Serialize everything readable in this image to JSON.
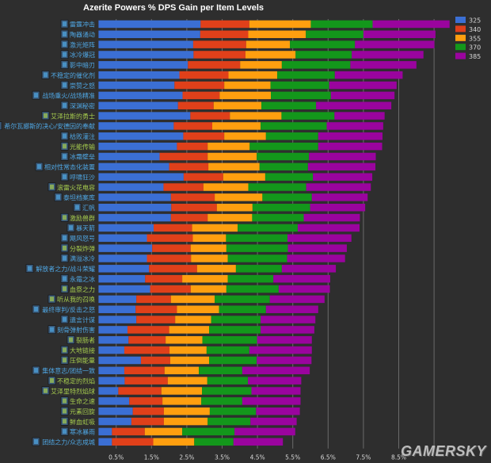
{
  "chart_data": {
    "type": "bar",
    "orientation": "horizontal",
    "stacked": true,
    "title": "Azerite Powers % DPS Gain per Item Levels",
    "xlabel": "",
    "ylabel": "",
    "xlim": [
      0,
      10.2
    ],
    "x_ticks": [
      "0.5%",
      "1.5%",
      "2.5%",
      "3.5%",
      "4.5%",
      "5.5%",
      "6.5%",
      "7.5%",
      "8.5%"
    ],
    "x_tick_values": [
      0.5,
      1.5,
      2.5,
      3.5,
      4.5,
      5.5,
      6.5,
      7.5,
      8.5
    ],
    "gridlines_at": [
      0.5,
      1.5,
      2.5,
      3.5,
      4.5,
      5.5,
      6.5,
      7.5,
      8.5,
      9.5
    ],
    "grid": true,
    "legend_position": "top-right",
    "value_meaning": "cumulative % DPS gain at each item level (bar segments drawn from previous level to this level)",
    "series": [
      {
        "name": "325",
        "color": "#3b6fd4"
      },
      {
        "name": "340",
        "color": "#e0401a"
      },
      {
        "name": "355",
        "color": "#ff9f0f"
      },
      {
        "name": "370",
        "color": "#13971b"
      },
      {
        "name": "385",
        "color": "#9a049e"
      }
    ],
    "label_colors": {
      "blue": "#4fa6e3",
      "green": "#a6cc4e"
    },
    "categories": [
      {
        "label": "雷霆冲击",
        "icon": "lightning-icon",
        "label_color": "blue",
        "values": [
          2.89,
          4.27,
          6.01,
          7.76,
          9.94
        ]
      },
      {
        "label": "陶器涌动",
        "icon": "surge-icon",
        "label_color": "blue",
        "values": [
          2.88,
          4.24,
          5.87,
          7.5,
          9.54
        ]
      },
      {
        "label": "激光矩阵",
        "icon": "laser-icon",
        "label_color": "blue",
        "values": [
          2.68,
          4.18,
          5.42,
          7.26,
          9.51
        ]
      },
      {
        "label": "冰冷爆冠",
        "icon": "frost-icon",
        "label_color": "blue",
        "values": [
          2.69,
          4.16,
          5.58,
          7.17,
          9.2
        ]
      },
      {
        "label": "影中暗刃",
        "icon": "blade-icon",
        "label_color": "blue",
        "values": [
          2.53,
          4.01,
          5.19,
          7.13,
          9.0
        ]
      },
      {
        "label": "不稳定的催化剂",
        "icon": "catalyst-icon",
        "label_color": "blue",
        "values": [
          2.29,
          3.68,
          5.06,
          6.69,
          8.61
        ]
      },
      {
        "label": "崇赞之怒",
        "icon": "wrath-icon",
        "label_color": "blue",
        "values": [
          2.15,
          3.56,
          4.87,
          6.53,
          8.44
        ]
      },
      {
        "label": "战场重火/战场精准",
        "icon": "battlefield-icon",
        "label_color": "blue",
        "values": [
          2.38,
          3.43,
          4.88,
          6.58,
          8.38
        ]
      },
      {
        "label": "深渊秘密",
        "icon": "abyss-icon",
        "label_color": "blue",
        "values": [
          2.25,
          3.26,
          4.61,
          6.16,
          8.29
        ]
      },
      {
        "label": "艾泽拉斯的勇士",
        "icon": "champion-icon",
        "label_color": "green",
        "values": [
          2.6,
          3.72,
          5.18,
          6.68,
          8.1
        ]
      },
      {
        "label": "希尔瓦娜斯的决心/安德因的奉献",
        "icon": "faction-icon",
        "label_color": "blue",
        "values": [
          2.13,
          3.22,
          4.59,
          6.46,
          8.06
        ]
      },
      {
        "label": "枯败灌注",
        "icon": "blight-icon",
        "label_color": "blue",
        "values": [
          2.4,
          3.56,
          4.74,
          6.22,
          8.04
        ]
      },
      {
        "label": "光能传输",
        "icon": "light-icon",
        "label_color": "green",
        "values": [
          2.22,
          3.09,
          4.28,
          6.22,
          8.03
        ]
      },
      {
        "label": "冰霜壁垒",
        "icon": "bulwark-icon",
        "label_color": "blue",
        "values": [
          1.73,
          3.09,
          4.48,
          5.96,
          7.85
        ]
      },
      {
        "label": "相对性常态化装置",
        "icon": "device-icon",
        "label_color": "blue",
        "values": [
          2.0,
          3.11,
          4.56,
          5.93,
          7.84
        ]
      },
      {
        "label": "呼啸狂沙",
        "icon": "sand-icon",
        "label_color": "blue",
        "values": [
          2.41,
          3.53,
          4.72,
          6.07,
          7.75
        ]
      },
      {
        "label": "滚雷火花电容",
        "icon": "spark-icon",
        "label_color": "green",
        "values": [
          1.84,
          2.97,
          4.24,
          5.88,
          7.71
        ]
      },
      {
        "label": "泰坦档案库",
        "icon": "archive-icon",
        "label_color": "blue",
        "values": [
          2.05,
          3.29,
          4.64,
          6.04,
          7.62
        ]
      },
      {
        "label": "汇帆",
        "icon": "sail-icon",
        "label_color": "blue",
        "values": [
          2.06,
          3.35,
          4.36,
          5.99,
          7.55
        ]
      },
      {
        "label": "激励兽群",
        "icon": "beast-icon",
        "label_color": "green",
        "values": [
          2.05,
          3.09,
          4.35,
          5.81,
          7.4
        ]
      },
      {
        "label": "暴天箭",
        "icon": "arrow-icon",
        "label_color": "blue",
        "values": [
          1.56,
          2.65,
          3.94,
          5.64,
          7.39
        ]
      },
      {
        "label": "飓风怒号",
        "icon": "gale-icon",
        "label_color": "blue",
        "values": [
          1.37,
          2.67,
          3.61,
          5.35,
          7.16
        ]
      },
      {
        "label": "分裂炸弹",
        "icon": "bomb-icon",
        "label_color": "green",
        "values": [
          1.52,
          2.61,
          3.62,
          5.36,
          7.03
        ]
      },
      {
        "label": "满溢冰冷",
        "icon": "chill-icon",
        "label_color": "blue",
        "values": [
          1.37,
          2.62,
          3.66,
          5.34,
          6.98
        ]
      },
      {
        "label": "解放者之力/战斗荣耀",
        "icon": "liberator-icon",
        "label_color": "blue",
        "values": [
          1.43,
          2.79,
          3.89,
          5.19,
          6.72
        ]
      },
      {
        "label": "永霜之冰",
        "icon": "ice-icon",
        "label_color": "blue",
        "values": [
          1.32,
          2.37,
          3.66,
          4.95,
          6.56
        ]
      },
      {
        "label": "血祭之力",
        "icon": "blood-icon",
        "label_color": "green",
        "values": [
          1.46,
          2.61,
          3.62,
          5.1,
          6.55
        ]
      },
      {
        "label": "听从我的召唤",
        "icon": "call-icon",
        "label_color": "green",
        "values": [
          1.07,
          2.05,
          3.29,
          4.85,
          6.4
        ]
      },
      {
        "label": "最终审判/反击之怒",
        "icon": "judgment-icon",
        "label_color": "blue",
        "values": [
          1.05,
          2.22,
          3.41,
          4.74,
          6.22
        ]
      },
      {
        "label": "遗言计谋",
        "icon": "scheme-icon",
        "label_color": "blue",
        "values": [
          1.07,
          2.17,
          3.19,
          4.59,
          6.14
        ]
      },
      {
        "label": "刻骨弹射伤害",
        "icon": "ricochet-icon",
        "label_color": "blue",
        "values": [
          0.82,
          2.0,
          3.13,
          4.59,
          6.11
        ]
      },
      {
        "label": "裂肠者",
        "icon": "gutripper-icon",
        "label_color": "green",
        "values": [
          0.85,
          1.9,
          2.94,
          4.49,
          6.04
        ]
      },
      {
        "label": "大地链接",
        "icon": "earthlink-icon",
        "label_color": "green",
        "values": [
          0.73,
          2.01,
          3.06,
          4.27,
          6.04
        ]
      },
      {
        "label": "压倒能量",
        "icon": "power-icon",
        "label_color": "green",
        "values": [
          1.2,
          2.03,
          3.13,
          4.48,
          6.03
        ]
      },
      {
        "label": "集体意志/团结一致",
        "icon": "collective-icon",
        "label_color": "blue",
        "values": [
          0.73,
          1.87,
          2.84,
          4.07,
          5.98
        ]
      },
      {
        "label": "不稳定的烈焰",
        "icon": "flame-icon",
        "label_color": "green",
        "values": [
          0.74,
          1.96,
          3.08,
          4.23,
          5.74
        ]
      },
      {
        "label": "艾泽里特烈焰球",
        "icon": "globe-icon",
        "label_color": "green",
        "values": [
          0.56,
          1.78,
          2.93,
          4.33,
          5.72
        ]
      },
      {
        "label": "生命之速",
        "icon": "speed-icon",
        "label_color": "green",
        "values": [
          0.87,
          1.81,
          2.91,
          4.07,
          5.72
        ]
      },
      {
        "label": "元素回旋",
        "icon": "whirl-icon",
        "label_color": "green",
        "values": [
          0.97,
          1.85,
          3.15,
          4.46,
          5.7
        ]
      },
      {
        "label": "鲜血虹吸",
        "icon": "siphon-icon",
        "label_color": "green",
        "values": [
          0.93,
          1.85,
          3.09,
          4.3,
          5.61
        ]
      },
      {
        "label": "寒冰暴雨",
        "icon": "icestorm-icon",
        "label_color": "blue",
        "values": [
          0.38,
          1.31,
          2.37,
          3.85,
          5.57
        ]
      },
      {
        "label": "团结之力/众志成城",
        "icon": "unity-icon",
        "label_color": "blue",
        "values": [
          0.38,
          1.55,
          2.71,
          3.82,
          5.22
        ]
      }
    ]
  },
  "watermark": "GAMERSKY"
}
